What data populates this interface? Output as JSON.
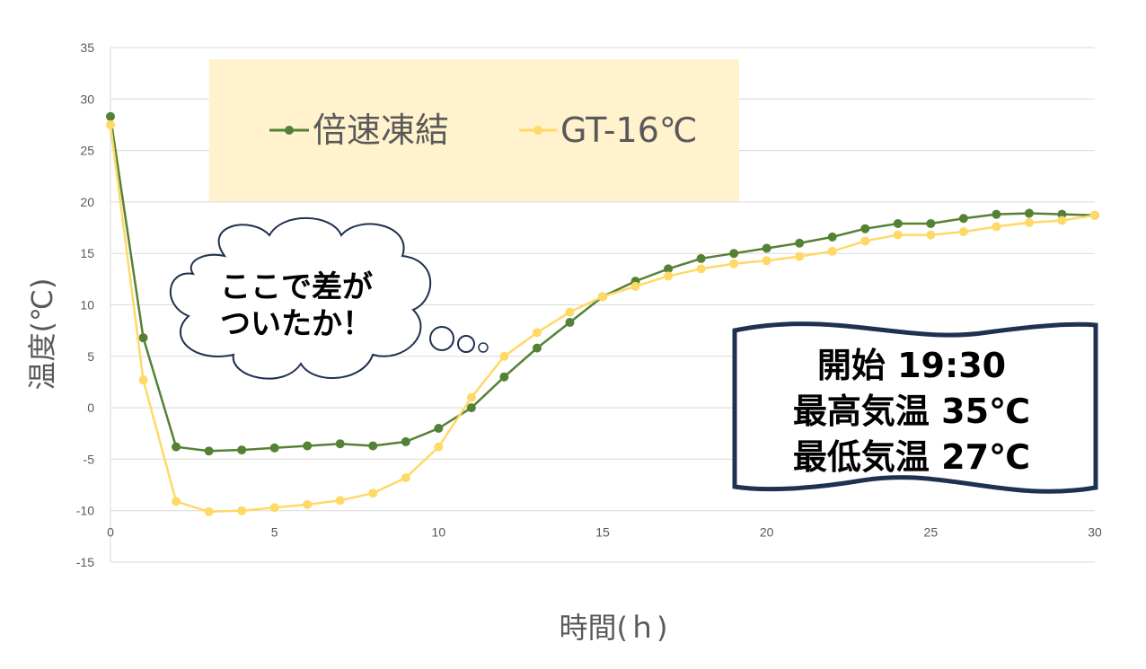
{
  "chart_data": {
    "type": "line",
    "xlabel": "時間(ｈ)",
    "ylabel": "温度(℃)",
    "xlim": [
      0,
      30
    ],
    "ylim": [
      -15,
      35
    ],
    "x_ticks": [
      0,
      5,
      10,
      15,
      20,
      25,
      30
    ],
    "y_ticks": [
      35,
      30,
      25,
      20,
      15,
      10,
      5,
      0,
      -5,
      -10,
      -15
    ],
    "grid": true,
    "legend_position": "top-left",
    "x": [
      0,
      1,
      2,
      3,
      4,
      5,
      6,
      7,
      8,
      9,
      10,
      11,
      12,
      13,
      14,
      15,
      16,
      17,
      18,
      19,
      20,
      21,
      22,
      23,
      24,
      25,
      26,
      27,
      28,
      29,
      30
    ],
    "series": [
      {
        "name": "倍速凍結",
        "color": "#548235",
        "values": [
          28.3,
          6.8,
          -3.8,
          -4.2,
          -4.1,
          -3.9,
          -3.7,
          -3.5,
          -3.7,
          -3.3,
          -2.0,
          0.0,
          3.0,
          5.8,
          8.3,
          10.8,
          12.3,
          13.5,
          14.5,
          15.0,
          15.5,
          16.0,
          16.6,
          17.4,
          17.9,
          17.9,
          18.4,
          18.8,
          18.9,
          18.8,
          18.7
        ]
      },
      {
        "name": "GT-16℃",
        "color": "#FFD966",
        "values": [
          27.5,
          2.7,
          -9.1,
          -10.1,
          -10.0,
          -9.7,
          -9.4,
          -9.0,
          -8.3,
          -6.8,
          -3.8,
          1.0,
          5.0,
          7.3,
          9.3,
          10.8,
          11.8,
          12.8,
          13.5,
          14.0,
          14.3,
          14.7,
          15.2,
          16.2,
          16.8,
          16.8,
          17.1,
          17.6,
          18.0,
          18.2,
          18.7
        ]
      }
    ],
    "annotations": {
      "bubble_lines": [
        "ここで差が",
        "ついたか！"
      ],
      "info_lines": [
        "開始 19:30",
        "最高気温 35℃",
        "最低気温 27℃"
      ]
    }
  },
  "colors": {
    "legend_bg": "#FFF2CC",
    "grid": "#D9D9D9",
    "info_border": "#1F3050",
    "bubble_border": "#1F3050"
  }
}
